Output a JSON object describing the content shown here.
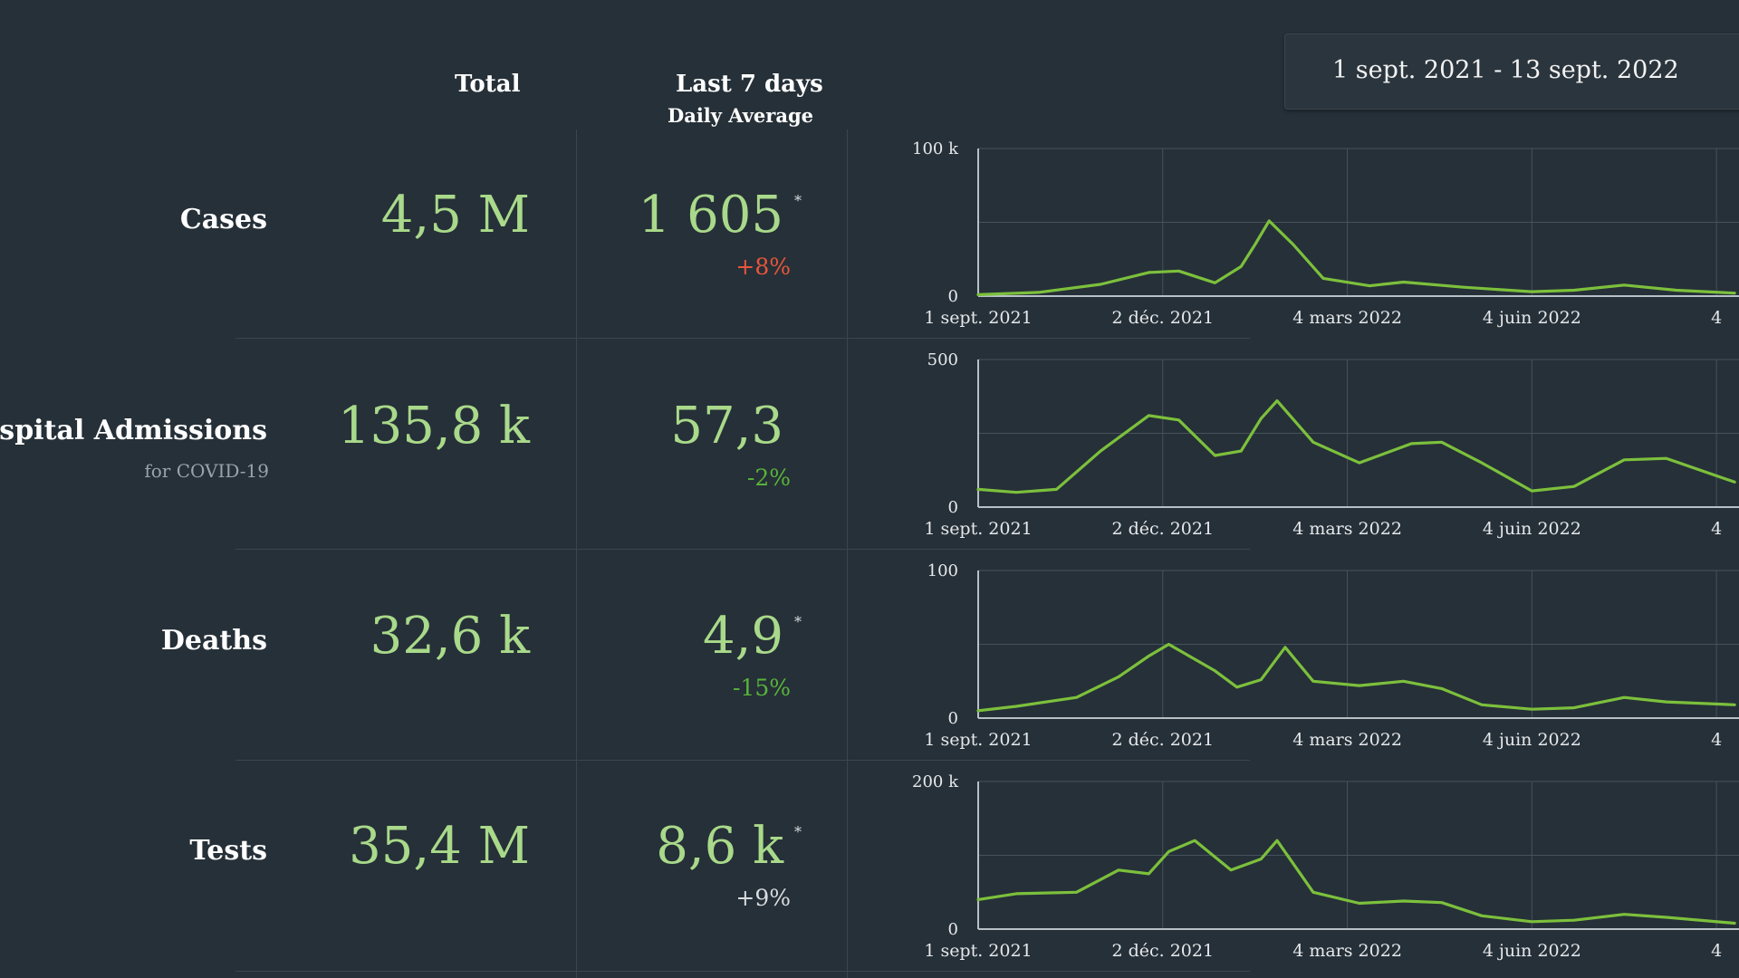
{
  "date_range": "1 sept. 2021 - 13 sept. 2022",
  "headers": {
    "total": "Total",
    "last7": "Last 7 days",
    "daily_average": "Daily Average"
  },
  "colors": {
    "background": "#263038",
    "value_green": "#a9d98a",
    "line_green": "#7cc03c",
    "increase_red": "#e8553b",
    "decrease_green": "#58b33a",
    "neutral": "#d8dde0"
  },
  "rows": [
    {
      "label": "Cases",
      "sublabel": "",
      "total": "4,5 M",
      "avg": "1 605",
      "asterisk": "*",
      "change": "+8%",
      "trend": "up-bad"
    },
    {
      "label": "Hospital Admissions",
      "sublabel": "for COVID-19",
      "total": "135,8 k",
      "avg": "57,3",
      "asterisk": "",
      "change": "-2%",
      "trend": "down-good"
    },
    {
      "label": "Deaths",
      "sublabel": "",
      "total": "32,6 k",
      "avg": "4,9",
      "asterisk": "*",
      "change": "-15%",
      "trend": "down-good"
    },
    {
      "label": "Tests",
      "sublabel": "",
      "total": "35,4 M",
      "avg": "8,6 k",
      "asterisk": "*",
      "change": "+9%",
      "trend": "neutral"
    }
  ],
  "chart_data": [
    {
      "type": "line",
      "title": "",
      "x_tick_labels": [
        "1 sept. 2021",
        "2 déc. 2021",
        "4 mars 2022",
        "4 juin 2022",
        "4"
      ],
      "y_tick_labels": [
        "100 k",
        "0"
      ],
      "ylim": [
        0,
        100000
      ],
      "grid": true,
      "x": [
        "2021-09-01",
        "2021-10-01",
        "2021-11-01",
        "2021-11-25",
        "2021-12-10",
        "2021-12-28",
        "2022-01-10",
        "2022-01-17",
        "2022-01-24",
        "2022-02-05",
        "2022-02-20",
        "2022-03-15",
        "2022-04-01",
        "2022-05-01",
        "2022-06-04",
        "2022-06-25",
        "2022-07-20",
        "2022-08-15",
        "2022-09-13"
      ],
      "series": [
        {
          "values": [
            1000,
            2500,
            8000,
            16000,
            17000,
            9000,
            20000,
            35000,
            51000,
            35000,
            12000,
            7000,
            9500,
            6000,
            3000,
            4000,
            7500,
            4000,
            2000
          ]
        }
      ]
    },
    {
      "type": "line",
      "title": "",
      "x_tick_labels": [
        "1 sept. 2021",
        "2 déc. 2021",
        "4 mars 2022",
        "4 juin 2022",
        "4"
      ],
      "y_tick_labels": [
        "500",
        "0"
      ],
      "ylim": [
        0,
        500
      ],
      "grid": true,
      "x": [
        "2021-09-01",
        "2021-09-20",
        "2021-10-10",
        "2021-11-01",
        "2021-11-25",
        "2021-12-10",
        "2021-12-28",
        "2022-01-10",
        "2022-01-20",
        "2022-01-28",
        "2022-02-15",
        "2022-03-10",
        "2022-04-05",
        "2022-04-20",
        "2022-05-10",
        "2022-06-04",
        "2022-06-25",
        "2022-07-20",
        "2022-08-10",
        "2022-09-13"
      ],
      "series": [
        {
          "values": [
            60,
            50,
            60,
            190,
            310,
            295,
            175,
            190,
            300,
            360,
            220,
            150,
            215,
            220,
            150,
            55,
            70,
            160,
            165,
            85
          ]
        }
      ]
    },
    {
      "type": "line",
      "title": "",
      "x_tick_labels": [
        "1 sept. 2021",
        "2 déc. 2021",
        "4 mars 2022",
        "4 juin 2022",
        "4"
      ],
      "y_tick_labels": [
        "100",
        "0"
      ],
      "ylim": [
        0,
        100
      ],
      "grid": true,
      "x": [
        "2021-09-01",
        "2021-09-20",
        "2021-10-20",
        "2021-11-10",
        "2021-11-25",
        "2021-12-05",
        "2021-12-28",
        "2022-01-08",
        "2022-01-20",
        "2022-02-01",
        "2022-02-15",
        "2022-03-10",
        "2022-04-01",
        "2022-04-20",
        "2022-05-10",
        "2022-06-04",
        "2022-06-25",
        "2022-07-20",
        "2022-08-10",
        "2022-09-13"
      ],
      "series": [
        {
          "values": [
            5,
            8,
            14,
            28,
            42,
            50,
            32,
            21,
            26,
            48,
            25,
            22,
            25,
            20,
            9,
            6,
            7,
            14,
            11,
            9
          ]
        }
      ]
    },
    {
      "type": "line",
      "title": "",
      "x_tick_labels": [
        "1 sept. 2021",
        "2 déc. 2021",
        "4 mars 2022",
        "4 juin 2022",
        "4"
      ],
      "y_tick_labels": [
        "200 k",
        "0"
      ],
      "ylim": [
        0,
        200000
      ],
      "grid": true,
      "x": [
        "2021-09-01",
        "2021-09-20",
        "2021-10-20",
        "2021-11-10",
        "2021-11-25",
        "2021-12-05",
        "2021-12-18",
        "2022-01-05",
        "2022-01-20",
        "2022-01-28",
        "2022-02-15",
        "2022-03-10",
        "2022-04-01",
        "2022-04-20",
        "2022-05-10",
        "2022-06-04",
        "2022-06-25",
        "2022-07-20",
        "2022-08-10",
        "2022-09-13"
      ],
      "series": [
        {
          "values": [
            40000,
            48000,
            50000,
            80000,
            75000,
            105000,
            120000,
            80000,
            95000,
            120000,
            50000,
            35000,
            38000,
            36000,
            18000,
            10000,
            12000,
            20000,
            16000,
            8000
          ]
        }
      ]
    }
  ]
}
